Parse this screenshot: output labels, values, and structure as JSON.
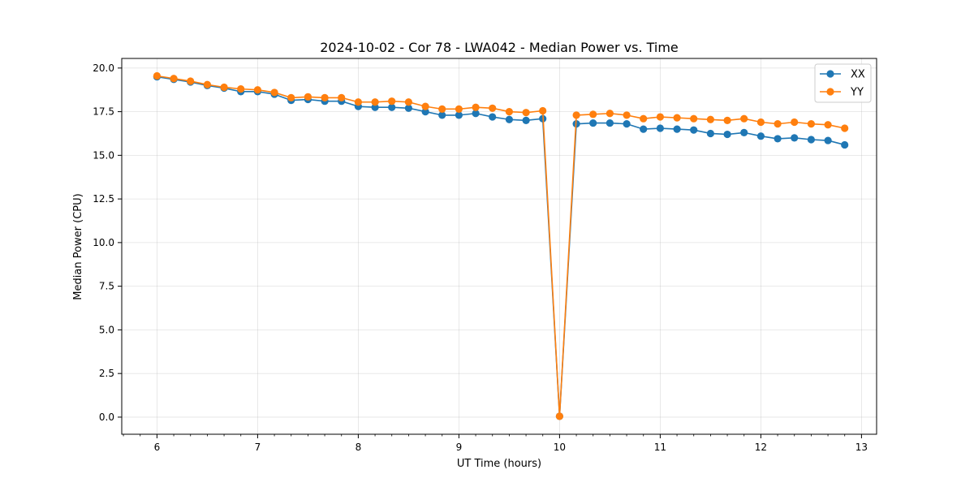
{
  "chart_data": {
    "type": "line",
    "title": "2024-10-02 - Cor 78 - LWA042 - Median Power vs. Time",
    "xlabel": "UT Time (hours)",
    "ylabel": "Median Power (CPU)",
    "xlim": [
      5.65,
      13.15
    ],
    "ylim": [
      -0.98,
      20.55
    ],
    "x_ticks": [
      6,
      7,
      8,
      9,
      10,
      11,
      12,
      13
    ],
    "y_ticks": [
      0.0,
      2.5,
      5.0,
      7.5,
      10.0,
      12.5,
      15.0,
      17.5,
      20.0
    ],
    "grid": true,
    "legend_position": "top-right",
    "x": [
      6.0,
      6.167,
      6.333,
      6.5,
      6.667,
      6.833,
      7.0,
      7.167,
      7.333,
      7.5,
      7.667,
      7.833,
      8.0,
      8.167,
      8.333,
      8.5,
      8.667,
      8.833,
      9.0,
      9.167,
      9.333,
      9.5,
      9.667,
      9.833,
      10.0,
      10.167,
      10.333,
      10.5,
      10.667,
      10.833,
      11.0,
      11.167,
      11.333,
      11.5,
      11.667,
      11.833,
      12.0,
      12.167,
      12.333,
      12.5,
      12.667,
      12.833
    ],
    "series": [
      {
        "name": "XX",
        "color": "#1f77b4",
        "values": [
          19.5,
          19.35,
          19.2,
          19.0,
          18.85,
          18.65,
          18.65,
          18.5,
          18.15,
          18.2,
          18.1,
          18.1,
          17.8,
          17.75,
          17.75,
          17.7,
          17.5,
          17.3,
          17.3,
          17.4,
          17.2,
          17.05,
          17.0,
          17.1,
          0.05,
          16.8,
          16.85,
          16.85,
          16.8,
          16.5,
          16.55,
          16.5,
          16.45,
          16.25,
          16.2,
          16.3,
          16.1,
          15.95,
          16.0,
          15.9,
          15.85,
          15.6
        ]
      },
      {
        "name": "YY",
        "color": "#ff7f0e",
        "values": [
          19.55,
          19.4,
          19.25,
          19.05,
          18.9,
          18.8,
          18.75,
          18.6,
          18.3,
          18.35,
          18.3,
          18.3,
          18.05,
          18.05,
          18.1,
          18.05,
          17.8,
          17.65,
          17.65,
          17.75,
          17.7,
          17.5,
          17.45,
          17.55,
          0.05,
          17.3,
          17.35,
          17.4,
          17.3,
          17.1,
          17.2,
          17.15,
          17.1,
          17.05,
          17.0,
          17.1,
          16.9,
          16.8,
          16.9,
          16.8,
          16.75,
          16.55
        ]
      }
    ]
  }
}
